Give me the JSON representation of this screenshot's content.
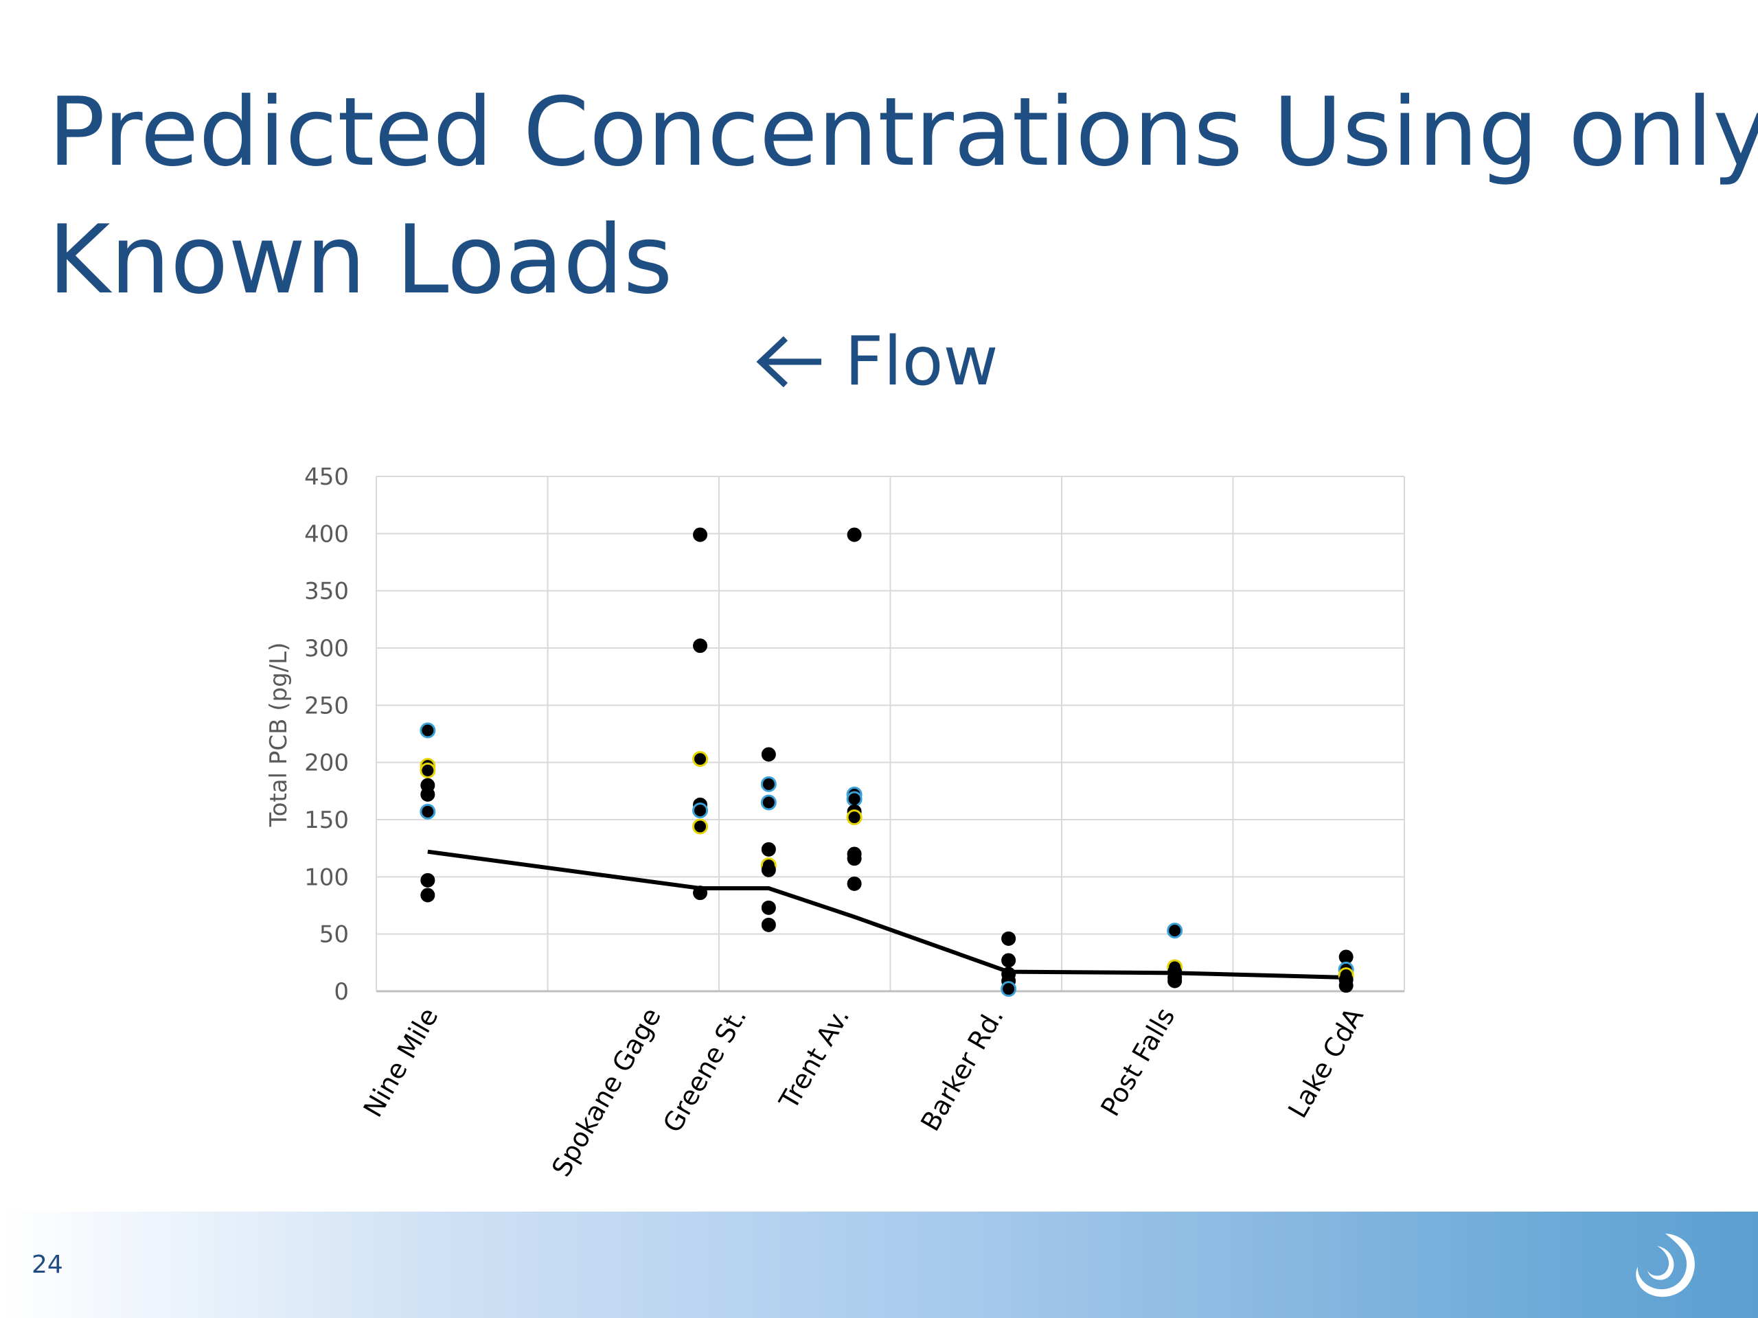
{
  "slide": {
    "title_line1": "Predicted Concentrations Using only",
    "title_line2": "Known Loads",
    "flow_label": "Flow",
    "page_number": "24"
  },
  "colors": {
    "title": "#1f4e82",
    "point": "#000000",
    "line": "#000000",
    "point_outline_blue": "#3aa0d8",
    "point_outline_yellow": "#e6d400",
    "grid": "#d9d9d9"
  },
  "chart_data": {
    "type": "scatter",
    "title": "",
    "xlabel": "",
    "ylabel": "Total PCB (pg/L)",
    "ylim": [
      0,
      450
    ],
    "yticks": [
      0,
      50,
      100,
      150,
      200,
      250,
      300,
      350,
      400,
      450
    ],
    "grid": true,
    "sites": [
      {
        "name": "Nine Mile",
        "x": 0.3
      },
      {
        "name": "Spokane Gage",
        "x": 1.6
      },
      {
        "name": "Greene St.",
        "x": 2.1
      },
      {
        "name": "Trent Av.",
        "x": 2.7
      },
      {
        "name": "Barker Rd.",
        "x": 3.6
      },
      {
        "name": "Post Falls",
        "x": 4.6
      },
      {
        "name": "Lake CdA",
        "x": 5.7
      }
    ],
    "x_range": [
      0,
      6
    ],
    "series": [
      {
        "type": "scatter",
        "points": [
          {
            "x": 0.3,
            "y": 228,
            "o": "b"
          },
          {
            "x": 0.3,
            "y": 197,
            "o": "y"
          },
          {
            "x": 0.3,
            "y": 193,
            "o": "y"
          },
          {
            "x": 0.3,
            "y": 180,
            "o": ""
          },
          {
            "x": 0.3,
            "y": 172,
            "o": ""
          },
          {
            "x": 0.3,
            "y": 157,
            "o": "b"
          },
          {
            "x": 0.3,
            "y": 97,
            "o": ""
          },
          {
            "x": 0.3,
            "y": 84,
            "o": ""
          },
          {
            "x": 1.89,
            "y": 399,
            "o": ""
          },
          {
            "x": 1.89,
            "y": 302,
            "o": ""
          },
          {
            "x": 1.89,
            "y": 203,
            "o": "y"
          },
          {
            "x": 1.89,
            "y": 163,
            "o": ""
          },
          {
            "x": 1.89,
            "y": 158,
            "o": "b"
          },
          {
            "x": 1.89,
            "y": 144,
            "o": "y"
          },
          {
            "x": 1.89,
            "y": 86,
            "o": ""
          },
          {
            "x": 2.29,
            "y": 207,
            "o": ""
          },
          {
            "x": 2.29,
            "y": 181,
            "o": "b"
          },
          {
            "x": 2.29,
            "y": 165,
            "o": "b"
          },
          {
            "x": 2.29,
            "y": 124,
            "o": ""
          },
          {
            "x": 2.29,
            "y": 110,
            "o": "y"
          },
          {
            "x": 2.29,
            "y": 106,
            "o": ""
          },
          {
            "x": 2.29,
            "y": 73,
            "o": ""
          },
          {
            "x": 2.29,
            "y": 58,
            "o": ""
          },
          {
            "x": 2.79,
            "y": 399,
            "o": ""
          },
          {
            "x": 2.79,
            "y": 172,
            "o": "b"
          },
          {
            "x": 2.79,
            "y": 168,
            "o": "b"
          },
          {
            "x": 2.79,
            "y": 157,
            "o": ""
          },
          {
            "x": 2.79,
            "y": 152,
            "o": "y"
          },
          {
            "x": 2.79,
            "y": 120,
            "o": ""
          },
          {
            "x": 2.79,
            "y": 116,
            "o": ""
          },
          {
            "x": 2.79,
            "y": 94,
            "o": ""
          },
          {
            "x": 3.69,
            "y": 46,
            "o": ""
          },
          {
            "x": 3.69,
            "y": 27,
            "o": ""
          },
          {
            "x": 3.69,
            "y": 15,
            "o": ""
          },
          {
            "x": 3.69,
            "y": 9,
            "o": ""
          },
          {
            "x": 3.69,
            "y": 2,
            "o": "b"
          },
          {
            "x": 4.66,
            "y": 53,
            "o": "b"
          },
          {
            "x": 4.66,
            "y": 21,
            "o": "y"
          },
          {
            "x": 4.66,
            "y": 17,
            "o": ""
          },
          {
            "x": 4.66,
            "y": 12,
            "o": ""
          },
          {
            "x": 4.66,
            "y": 9,
            "o": ""
          },
          {
            "x": 5.66,
            "y": 30,
            "o": ""
          },
          {
            "x": 5.66,
            "y": 19,
            "o": "b"
          },
          {
            "x": 5.66,
            "y": 14,
            "o": "y"
          },
          {
            "x": 5.66,
            "y": 10,
            "o": ""
          },
          {
            "x": 5.66,
            "y": 5,
            "o": ""
          }
        ]
      },
      {
        "type": "line",
        "points": [
          {
            "x": 0.3,
            "y": 122
          },
          {
            "x": 1.89,
            "y": 90
          },
          {
            "x": 2.29,
            "y": 90
          },
          {
            "x": 2.79,
            "y": 65
          },
          {
            "x": 3.69,
            "y": 17
          },
          {
            "x": 4.66,
            "y": 16
          },
          {
            "x": 5.66,
            "y": 12
          }
        ]
      }
    ]
  }
}
